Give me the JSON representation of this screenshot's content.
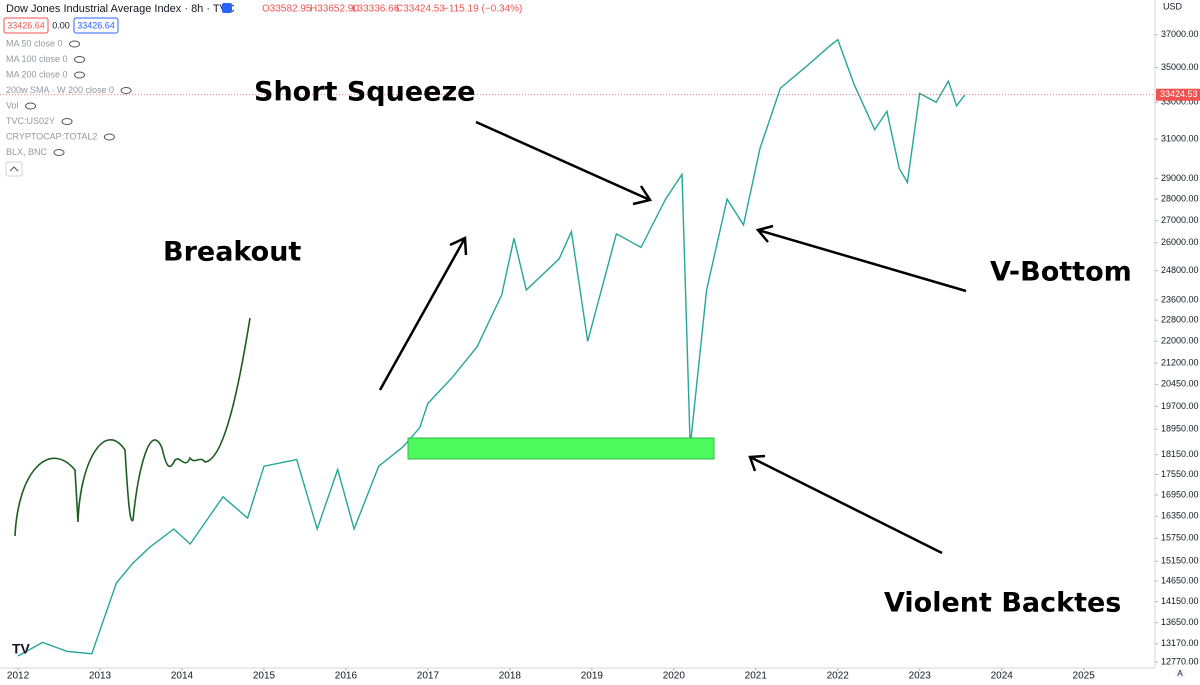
{
  "header": {
    "symbol": "Dow Jones Industrial Average Index · 8h · TVC",
    "open": "O33582.95",
    "high": "H33652.90",
    "low": "L33336.66",
    "close": "C33424.53",
    "change": "−115.19 (−0.34%)",
    "sell": "33426.64",
    "spread": "0.00",
    "buy": "33426.64",
    "currency": "USD",
    "price_label": "33424.53",
    "auto": "A"
  },
  "indicators": [
    "MA 50 close 0",
    "MA 100 close 0",
    "MA 200 close 0",
    "200w SMA · W 200 close 0",
    "Vol",
    "TVC:US02Y",
    "CRYPTOCAP:TOTAL2",
    "BLX, BNC"
  ],
  "annotations": [
    "Short Squeeze",
    "Breakout",
    "V-Bottom",
    "Violent Backtes"
  ],
  "chart_data": {
    "type": "line",
    "log_scale": true,
    "grid": false,
    "color": "#26a69a",
    "x": [
      2012.0,
      2012.3,
      2012.6,
      2012.9,
      2013.2,
      2013.4,
      2013.6,
      2013.9,
      2014.1,
      2014.5,
      2014.8,
      2015.0,
      2015.4,
      2015.65,
      2015.9,
      2016.1,
      2016.4,
      2016.7,
      2016.9,
      2017.0,
      2017.3,
      2017.6,
      2017.9,
      2018.05,
      2018.2,
      2018.6,
      2018.75,
      2018.95,
      2019.3,
      2019.6,
      2019.9,
      2020.1,
      2020.2,
      2020.4,
      2020.65,
      2020.85,
      2021.05,
      2021.3,
      2021.6,
      2021.9,
      2022.0,
      2022.2,
      2022.45,
      2022.6,
      2022.75,
      2022.85,
      2023.0,
      2023.2,
      2023.35,
      2023.45,
      2023.55
    ],
    "values": [
      12900,
      13200,
      13000,
      12950,
      14600,
      15100,
      15500,
      16000,
      15600,
      16900,
      16300,
      17800,
      18000,
      16000,
      17700,
      16000,
      17800,
      18400,
      19000,
      19800,
      20700,
      21800,
      23800,
      26200,
      24000,
      25300,
      26500,
      22000,
      26400,
      25800,
      28000,
      29200,
      18400,
      24000,
      28000,
      26800,
      30500,
      33800,
      35000,
      36300,
      36700,
      34000,
      31500,
      32500,
      29500,
      28800,
      33500,
      33000,
      34200,
      32800,
      33400
    ],
    "xlim": [
      2011.78,
      2025.87
    ],
    "xticks": [
      2012,
      2013,
      2014,
      2015,
      2016,
      2017,
      2018,
      2019,
      2020,
      2021,
      2022,
      2023,
      2024,
      2025
    ],
    "ylim": [
      12640,
      39250
    ],
    "yticks": [
      {
        "value": 37000,
        "label": "37000.00"
      },
      {
        "value": 35000,
        "label": "35000.00"
      },
      {
        "value": 33000,
        "label": "33000.00"
      },
      {
        "value": 31000,
        "label": "31000.00"
      },
      {
        "value": 29000,
        "label": "29000.00"
      },
      {
        "value": 28000,
        "label": "28000.00"
      },
      {
        "value": 27000,
        "label": "27000.00"
      },
      {
        "value": 26000,
        "label": "26000.00"
      },
      {
        "value": 24800,
        "label": "24800.00"
      },
      {
        "value": 23600,
        "label": "23600.00"
      },
      {
        "value": 22800,
        "label": "22800.00"
      },
      {
        "value": 22000,
        "label": "22000.00"
      },
      {
        "value": 21200,
        "label": "21200.00"
      },
      {
        "value": 20450,
        "label": "20450.00"
      },
      {
        "value": 19700,
        "label": "19700.00"
      },
      {
        "value": 18950,
        "label": "18950.00"
      },
      {
        "value": 18150,
        "label": "18150.00"
      },
      {
        "value": 17550,
        "label": "17550.00"
      },
      {
        "value": 16950,
        "label": "16950.00"
      },
      {
        "value": 16350,
        "label": "16350.00"
      },
      {
        "value": 15750,
        "label": "15750.00"
      },
      {
        "value": 15150,
        "label": "15150.00"
      },
      {
        "value": 14650,
        "label": "14650.00"
      },
      {
        "value": 14150,
        "label": "14150.00"
      },
      {
        "value": 13650,
        "label": "13650.00"
      },
      {
        "value": 13170,
        "label": "13170.00"
      },
      {
        "value": 12770,
        "label": "12770.00"
      }
    ]
  }
}
